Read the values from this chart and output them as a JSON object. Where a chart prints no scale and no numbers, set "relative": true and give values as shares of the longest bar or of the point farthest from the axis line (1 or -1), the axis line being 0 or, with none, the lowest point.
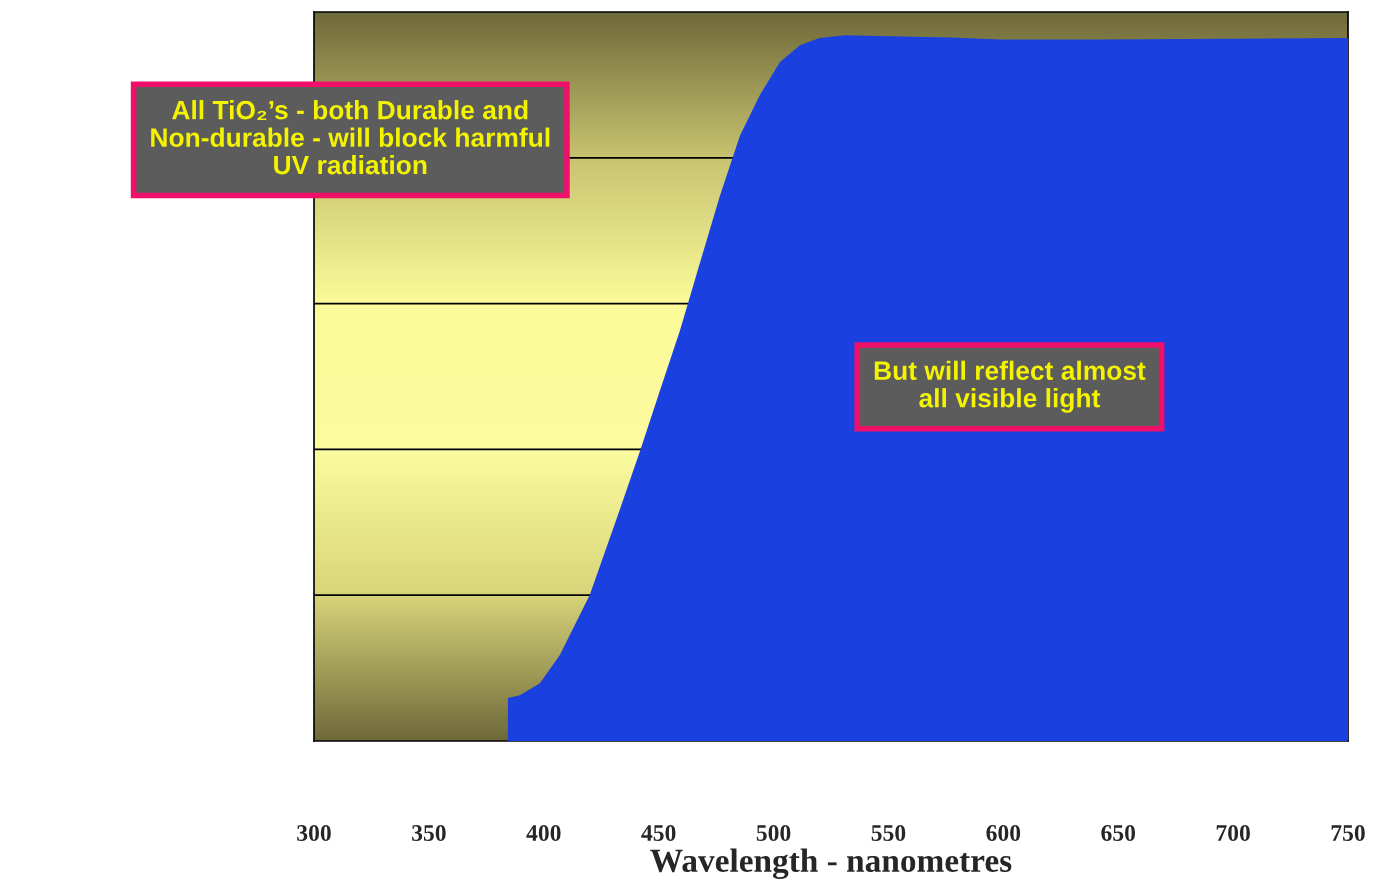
{
  "chart_data": {
    "type": "area",
    "relative": true,
    "xlabel": "Wavelength - nanometres",
    "x": [
      384.4,
      389.6,
      398.3,
      407,
      420,
      433,
      442,
      450.6,
      459.3,
      468,
      476.7,
      485.4,
      494,
      502.8,
      511.5,
      520,
      531,
      546,
      576.8,
      598.5,
      642,
      750
    ],
    "series": [
      {
        "color": "#1a40e0",
        "values": [
          0.061,
          0.065,
          0.082,
          0.122,
          0.207,
          0.327,
          0.412,
          0.497,
          0.582,
          0.678,
          0.773,
          0.858,
          0.915,
          0.962,
          0.986,
          0.996,
          1,
          0.999,
          0.997,
          0.994,
          0.994,
          0.996
        ]
      }
    ],
    "xlim": [
      300,
      750
    ],
    "xticks": [
      300,
      350,
      400,
      450,
      500,
      550,
      600,
      650,
      700,
      750
    ],
    "grid": "y",
    "annotations": [
      "All TiO₂’s - both Durable and\nNon-durable - will block harmful\nUV radiation",
      "But will reflect almost\nall visible light"
    ]
  }
}
